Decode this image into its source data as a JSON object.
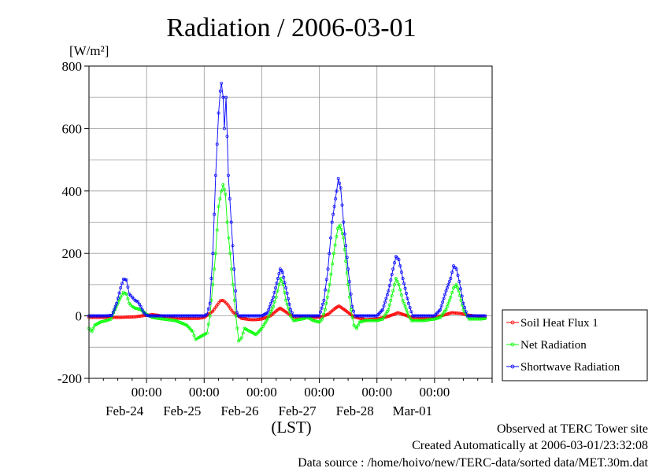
{
  "chart_data": {
    "type": "line",
    "title": "Radiation / 2006-03-01",
    "ylabel": "[W/m²]",
    "xlabel": "(LST)",
    "ylim": [
      -200,
      800
    ],
    "yticks": [
      "800",
      "600",
      "400",
      "200",
      "0",
      "-200"
    ],
    "x_start": "Feb-23 00:00",
    "x_end": "Mar-02 00:00",
    "x_ticks": [
      {
        "time": "00:00",
        "date": "Feb-24"
      },
      {
        "time": "00:00",
        "date": "Feb-25"
      },
      {
        "time": "00:00",
        "date": "Feb-26"
      },
      {
        "time": "00:00",
        "date": "Feb-27"
      },
      {
        "time": "00:00",
        "date": "Feb-28"
      },
      {
        "time": "00:00",
        "date": "Mar-01"
      }
    ],
    "grid": true,
    "legend_position": "right",
    "series": [
      {
        "name": "Soil Heat Flux 1",
        "color": "#ff0000",
        "points": [
          [
            0,
            -5
          ],
          [
            0.5,
            -5
          ],
          [
            0.8,
            -3
          ],
          [
            1.0,
            2
          ],
          [
            1.1,
            4
          ],
          [
            1.2,
            2
          ],
          [
            1.4,
            -5
          ],
          [
            1.6,
            -8
          ],
          [
            1.9,
            -8
          ],
          [
            2.0,
            -5
          ],
          [
            2.15,
            15
          ],
          [
            2.28,
            48
          ],
          [
            2.33,
            50
          ],
          [
            2.4,
            38
          ],
          [
            2.5,
            12
          ],
          [
            2.65,
            -8
          ],
          [
            2.8,
            -12
          ],
          [
            2.9,
            -12
          ],
          [
            3.0,
            -10
          ],
          [
            3.15,
            0
          ],
          [
            3.28,
            20
          ],
          [
            3.32,
            25
          ],
          [
            3.4,
            15
          ],
          [
            3.55,
            -3
          ],
          [
            3.8,
            -5
          ],
          [
            4.0,
            -5
          ],
          [
            4.15,
            5
          ],
          [
            4.28,
            25
          ],
          [
            4.34,
            32
          ],
          [
            4.42,
            22
          ],
          [
            4.6,
            -3
          ],
          [
            4.8,
            -12
          ],
          [
            5.0,
            -10
          ],
          [
            5.15,
            -4
          ],
          [
            5.3,
            5
          ],
          [
            5.36,
            10
          ],
          [
            5.45,
            5
          ],
          [
            5.6,
            -5
          ],
          [
            5.8,
            -10
          ],
          [
            6.0,
            -5
          ],
          [
            6.15,
            2
          ],
          [
            6.3,
            10
          ],
          [
            6.45,
            8
          ],
          [
            6.6,
            2
          ],
          [
            6.8,
            -2
          ],
          [
            6.9,
            -5
          ]
        ]
      },
      {
        "name": "Net Radiation",
        "color": "#00ff00",
        "points": [
          [
            0,
            -40
          ],
          [
            0.05,
            -50
          ],
          [
            0.1,
            -30
          ],
          [
            0.2,
            -20
          ],
          [
            0.3,
            -15
          ],
          [
            0.38,
            -10
          ],
          [
            0.45,
            20
          ],
          [
            0.55,
            60
          ],
          [
            0.6,
            75
          ],
          [
            0.65,
            70
          ],
          [
            0.7,
            40
          ],
          [
            0.75,
            30
          ],
          [
            0.8,
            25
          ],
          [
            0.9,
            20
          ],
          [
            1.0,
            5
          ],
          [
            1.1,
            -5
          ],
          [
            1.2,
            -8
          ],
          [
            1.5,
            -15
          ],
          [
            1.7,
            -30
          ],
          [
            1.8,
            -50
          ],
          [
            1.85,
            -75
          ],
          [
            1.9,
            -70
          ],
          [
            2.0,
            -60
          ],
          [
            2.05,
            -55
          ],
          [
            2.1,
            0
          ],
          [
            2.15,
            100
          ],
          [
            2.2,
            200
          ],
          [
            2.25,
            350
          ],
          [
            2.3,
            400
          ],
          [
            2.33,
            420
          ],
          [
            2.37,
            390
          ],
          [
            2.4,
            300
          ],
          [
            2.45,
            200
          ],
          [
            2.5,
            100
          ],
          [
            2.55,
            0
          ],
          [
            2.6,
            -80
          ],
          [
            2.65,
            -70
          ],
          [
            2.7,
            -40
          ],
          [
            2.8,
            -50
          ],
          [
            2.9,
            -60
          ],
          [
            3.0,
            -40
          ],
          [
            3.1,
            -10
          ],
          [
            3.2,
            30
          ],
          [
            3.25,
            60
          ],
          [
            3.3,
            100
          ],
          [
            3.33,
            120
          ],
          [
            3.37,
            100
          ],
          [
            3.42,
            50
          ],
          [
            3.5,
            0
          ],
          [
            3.55,
            -15
          ],
          [
            3.7,
            -10
          ],
          [
            3.8,
            -5
          ],
          [
            3.9,
            -15
          ],
          [
            4.0,
            -20
          ],
          [
            4.05,
            -10
          ],
          [
            4.1,
            20
          ],
          [
            4.18,
            100
          ],
          [
            4.25,
            200
          ],
          [
            4.32,
            280
          ],
          [
            4.36,
            290
          ],
          [
            4.42,
            250
          ],
          [
            4.5,
            100
          ],
          [
            4.55,
            20
          ],
          [
            4.6,
            -30
          ],
          [
            4.65,
            -40
          ],
          [
            4.7,
            -20
          ],
          [
            4.8,
            -15
          ],
          [
            5.0,
            -15
          ],
          [
            5.1,
            -10
          ],
          [
            5.2,
            20
          ],
          [
            5.28,
            80
          ],
          [
            5.33,
            120
          ],
          [
            5.38,
            100
          ],
          [
            5.45,
            50
          ],
          [
            5.55,
            0
          ],
          [
            5.6,
            -15
          ],
          [
            5.8,
            -15
          ],
          [
            6.0,
            -10
          ],
          [
            6.1,
            -5
          ],
          [
            6.2,
            20
          ],
          [
            6.28,
            60
          ],
          [
            6.33,
            90
          ],
          [
            6.38,
            100
          ],
          [
            6.42,
            80
          ],
          [
            6.5,
            20
          ],
          [
            6.6,
            -10
          ],
          [
            6.8,
            -10
          ],
          [
            6.9,
            -8
          ]
        ]
      },
      {
        "name": "Shortwave Radiation",
        "color": "#0000ff",
        "points": [
          [
            0,
            0
          ],
          [
            0.3,
            0
          ],
          [
            0.4,
            2
          ],
          [
            0.48,
            40
          ],
          [
            0.55,
            90
          ],
          [
            0.6,
            118
          ],
          [
            0.65,
            115
          ],
          [
            0.7,
            70
          ],
          [
            0.75,
            60
          ],
          [
            0.8,
            50
          ],
          [
            0.85,
            45
          ],
          [
            0.9,
            30
          ],
          [
            0.95,
            10
          ],
          [
            1.0,
            2
          ],
          [
            1.05,
            0
          ],
          [
            2.0,
            0
          ],
          [
            2.05,
            5
          ],
          [
            2.1,
            40
          ],
          [
            2.15,
            200
          ],
          [
            2.2,
            450
          ],
          [
            2.25,
            650
          ],
          [
            2.28,
            720
          ],
          [
            2.3,
            745
          ],
          [
            2.33,
            700
          ],
          [
            2.35,
            600
          ],
          [
            2.38,
            700
          ],
          [
            2.42,
            450
          ],
          [
            2.47,
            300
          ],
          [
            2.52,
            150
          ],
          [
            2.57,
            10
          ],
          [
            2.6,
            0
          ],
          [
            3.0,
            0
          ],
          [
            3.1,
            10
          ],
          [
            3.2,
            60
          ],
          [
            3.28,
            120
          ],
          [
            3.32,
            150
          ],
          [
            3.36,
            140
          ],
          [
            3.42,
            90
          ],
          [
            3.5,
            20
          ],
          [
            3.55,
            0
          ],
          [
            4.0,
            0
          ],
          [
            4.08,
            50
          ],
          [
            4.15,
            150
          ],
          [
            4.22,
            300
          ],
          [
            4.3,
            400
          ],
          [
            4.33,
            440
          ],
          [
            4.37,
            410
          ],
          [
            4.42,
            300
          ],
          [
            4.5,
            150
          ],
          [
            4.57,
            30
          ],
          [
            4.62,
            0
          ],
          [
            5.0,
            0
          ],
          [
            5.1,
            20
          ],
          [
            5.2,
            80
          ],
          [
            5.28,
            150
          ],
          [
            5.33,
            190
          ],
          [
            5.38,
            180
          ],
          [
            5.45,
            120
          ],
          [
            5.55,
            40
          ],
          [
            5.62,
            0
          ],
          [
            6.0,
            0
          ],
          [
            6.1,
            20
          ],
          [
            6.2,
            80
          ],
          [
            6.28,
            120
          ],
          [
            6.33,
            160
          ],
          [
            6.38,
            150
          ],
          [
            6.43,
            110
          ],
          [
            6.5,
            40
          ],
          [
            6.57,
            0
          ],
          [
            6.9,
            0
          ]
        ]
      }
    ]
  },
  "footer": {
    "line1": "Observed at TERC Tower site",
    "line2": "Created Automatically at 2006-03-01/23:32:08",
    "line3": "Data source : /home/hoivo/new/TERC-data/sorted  data/MET.30m.dat"
  }
}
